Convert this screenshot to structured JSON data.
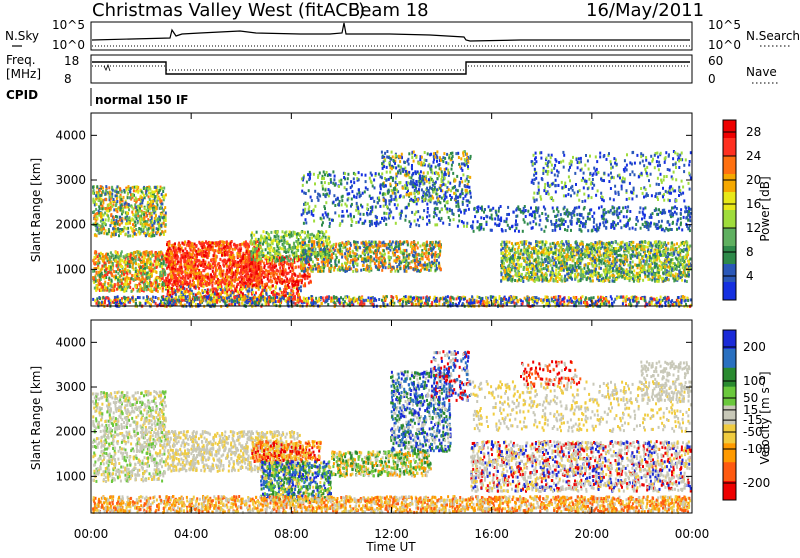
{
  "header": {
    "station": "Christmas Valley West (fitACF)",
    "beam": "Beam 18",
    "date": "16/May/2011"
  },
  "panels": {
    "nsky": {
      "label": "N.Sky",
      "ticks_left": [
        "10^5",
        "10^0"
      ],
      "ticks_right": [
        "10^5",
        "10^0"
      ],
      "right_label": "N.Search"
    },
    "freq": {
      "label_line1": "Freq.",
      "label_line2": "[MHz]",
      "ticks_left": [
        "18",
        "8"
      ],
      "ticks_right": [
        "60",
        "0"
      ],
      "right_label": "Nave"
    },
    "cpid": {
      "label": "CPID",
      "mode": "normal 150 IF"
    }
  },
  "colors": {
    "power": [
      "#1530e0",
      "#2a58b8",
      "#2e8a4a",
      "#5fb060",
      "#9fdc3c",
      "#e8e818",
      "#f5a800",
      "#ff7010",
      "#ff3020",
      "#ee0000"
    ],
    "velocity": [
      "#ee0000",
      "#ff5a10",
      "#ff9a00",
      "#f0cc40",
      "#c8c8b8",
      "#6ac83c",
      "#2a8a30",
      "#2a70c0",
      "#1a2ad8"
    ]
  },
  "chart_data": [
    {
      "type": "heatmap",
      "title": "Power",
      "ylabel": "Slant Range [km]",
      "xlabel": "Time UT",
      "xticks": [
        "00:00",
        "04:00",
        "08:00",
        "12:00",
        "16:00",
        "20:00",
        "00:00"
      ],
      "yticks": [
        "1000",
        "2000",
        "3000",
        "4000"
      ],
      "ylim": [
        180,
        4500
      ],
      "colorbar": {
        "label": "Power [dB]",
        "ticks": [
          "4",
          "8",
          "12",
          "16",
          "20",
          "24",
          "28"
        ],
        "range": [
          0,
          30
        ]
      }
    },
    {
      "type": "heatmap",
      "title": "Velocity",
      "ylabel": "Slant Range [km]",
      "xlabel": "Time UT",
      "xticks": [
        "00:00",
        "04:00",
        "08:00",
        "12:00",
        "16:00",
        "20:00",
        "00:00"
      ],
      "yticks": [
        "1000",
        "2000",
        "3000",
        "4000"
      ],
      "ylim": [
        180,
        4500
      ],
      "colorbar": {
        "label": "Velocity [m s⁻¹]",
        "ticks": [
          "200",
          "100",
          "50",
          "15",
          "-15",
          "-50",
          "-100",
          "-200"
        ],
        "range": [
          -250,
          250
        ]
      }
    }
  ]
}
